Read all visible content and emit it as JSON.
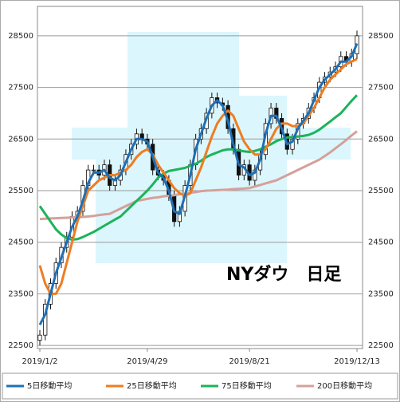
{
  "chart_data": {
    "type": "candlestick",
    "title": "NYダウ　日足",
    "categories": [
      "2019/1/2",
      null,
      null,
      null,
      null,
      null,
      null,
      null,
      null,
      null,
      null,
      null,
      null,
      null,
      null,
      null,
      null,
      null,
      null,
      null,
      "2019/4/29",
      null,
      null,
      null,
      null,
      null,
      null,
      null,
      null,
      null,
      null,
      null,
      null,
      null,
      null,
      null,
      null,
      null,
      null,
      "2019/8/21",
      null,
      null,
      null,
      null,
      null,
      null,
      null,
      null,
      null,
      null,
      null,
      null,
      null,
      null,
      null,
      null,
      null,
      null,
      null,
      "2019/12/13"
    ],
    "open": [
      22600,
      22700,
      23300,
      23700,
      24100,
      24400,
      24600,
      25000,
      25100,
      25600,
      25900,
      25900,
      25800,
      26000,
      25600,
      25700,
      25900,
      26200,
      26400,
      26600,
      26500,
      26400,
      25900,
      25800,
      25700,
      25400,
      24900,
      25100,
      25600,
      26000,
      26500,
      26700,
      27000,
      27300,
      27200,
      27150,
      26700,
      26300,
      25800,
      26000,
      25700,
      25900,
      26200,
      26800,
      27100,
      26900,
      26600,
      26300,
      26500,
      26800,
      26900,
      27100,
      27300,
      27600,
      27700,
      27800,
      27900,
      28100,
      28000,
      28150
    ],
    "high": [
      22800,
      23400,
      23800,
      24200,
      24500,
      24700,
      25100,
      25200,
      25700,
      26000,
      26000,
      26000,
      26100,
      26100,
      25800,
      26000,
      26300,
      26500,
      26700,
      26700,
      26600,
      26500,
      26000,
      25900,
      25800,
      25500,
      25200,
      25700,
      26100,
      26600,
      26800,
      27100,
      27400,
      27400,
      27300,
      27250,
      26800,
      26400,
      26100,
      26100,
      26000,
      26300,
      26900,
      27200,
      27200,
      27000,
      26700,
      26600,
      26900,
      27000,
      27200,
      27400,
      27700,
      27800,
      27900,
      28000,
      28200,
      28200,
      28250,
      28600
    ],
    "low": [
      22500,
      22600,
      23200,
      23600,
      24000,
      24300,
      24500,
      24900,
      25000,
      25500,
      25800,
      25700,
      25700,
      25500,
      25500,
      25600,
      25800,
      26100,
      26300,
      26400,
      26300,
      25800,
      25700,
      25600,
      25300,
      24800,
      24800,
      25000,
      25500,
      25900,
      26400,
      26600,
      26900,
      27100,
      27050,
      26600,
      26200,
      25700,
      25700,
      25600,
      25600,
      25800,
      26100,
      26700,
      26800,
      26500,
      26200,
      26200,
      26400,
      26700,
      26800,
      27000,
      27200,
      27500,
      27600,
      27700,
      27800,
      27900,
      27900,
      28050
    ],
    "close": [
      22700,
      23300,
      23700,
      24100,
      24400,
      24600,
      25000,
      25100,
      25600,
      25900,
      25900,
      25800,
      26000,
      25600,
      25700,
      25900,
      26200,
      26400,
      26600,
      26500,
      26400,
      25900,
      25800,
      25700,
      25400,
      24900,
      25100,
      25600,
      26000,
      26500,
      26700,
      27000,
      27300,
      27200,
      27150,
      26700,
      26300,
      25800,
      26000,
      25700,
      25900,
      26200,
      26800,
      27100,
      26900,
      26600,
      26300,
      26500,
      26800,
      26900,
      27100,
      27300,
      27600,
      27700,
      27800,
      27900,
      28100,
      28000,
      28150,
      28500
    ],
    "series": [
      {
        "name": "5日移動平均",
        "color": "#1f6fb5",
        "values": [
          22900,
          23100,
          23500,
          23900,
          24200,
          24500,
          24800,
          25000,
          25300,
          25650,
          25850,
          25850,
          25900,
          25750,
          25700,
          25800,
          26050,
          26300,
          26500,
          26500,
          26450,
          26150,
          25850,
          25750,
          25500,
          25100,
          25050,
          25400,
          25800,
          26300,
          26600,
          26900,
          27150,
          27250,
          27150,
          26850,
          26400,
          26000,
          25950,
          25800,
          25850,
          26100,
          26600,
          26950,
          26950,
          26700,
          26400,
          26450,
          26700,
          26850,
          27000,
          27250,
          27500,
          27650,
          27750,
          27850,
          28000,
          28000,
          28100,
          28350
        ]
      },
      {
        "name": "25日移動平均",
        "color": "#ed7d22",
        "values": [
          24050,
          23700,
          23500,
          23500,
          23700,
          24100,
          24500,
          24900,
          25200,
          25500,
          25600,
          25700,
          25750,
          25800,
          25800,
          25850,
          25900,
          26000,
          26150,
          26250,
          26300,
          26200,
          26000,
          25850,
          25700,
          25550,
          25450,
          25400,
          25450,
          25700,
          25950,
          26250,
          26550,
          26800,
          26950,
          27050,
          26950,
          26700,
          26450,
          26300,
          26200,
          26200,
          26300,
          26500,
          26700,
          26800,
          26800,
          26750,
          26750,
          26800,
          26950,
          27100,
          27300,
          27500,
          27650,
          27750,
          27850,
          27950,
          28000,
          28050
        ]
      },
      {
        "name": "75日移動平均",
        "color": "#1db35a",
        "values": [
          25200,
          25050,
          24900,
          24750,
          24650,
          24580,
          24550,
          24560,
          24600,
          24650,
          24700,
          24760,
          24820,
          24880,
          24940,
          25000,
          25100,
          25200,
          25300,
          25400,
          25500,
          25620,
          25750,
          25830,
          25880,
          25900,
          25920,
          25940,
          25980,
          26020,
          26080,
          26150,
          26200,
          26240,
          26280,
          26300,
          26300,
          26280,
          26260,
          26250,
          26270,
          26300,
          26350,
          26400,
          26460,
          26500,
          26530,
          26540,
          26550,
          26560,
          26580,
          26620,
          26680,
          26760,
          26840,
          26920,
          27000,
          27120,
          27240,
          27350
        ]
      },
      {
        "name": "200日移動平均",
        "color": "#d4a19a",
        "values": [
          24950,
          24955,
          24960,
          24965,
          24970,
          24975,
          24980,
          24985,
          24990,
          25000,
          25010,
          25025,
          25040,
          25050,
          25100,
          25150,
          25200,
          25250,
          25300,
          25320,
          25340,
          25360,
          25370,
          25390,
          25400,
          25410,
          25430,
          25440,
          25460,
          25470,
          25490,
          25500,
          25505,
          25510,
          25515,
          25520,
          25530,
          25535,
          25540,
          25550,
          25580,
          25610,
          25640,
          25670,
          25700,
          25750,
          25800,
          25850,
          25900,
          25950,
          26000,
          26050,
          26100,
          26170,
          26240,
          26320,
          26400,
          26480,
          26570,
          26650
        ]
      }
    ],
    "ylim": [
      22440,
      29070
    ],
    "yticks": [
      22500,
      23500,
      24500,
      25500,
      26500,
      27500,
      28500
    ],
    "grid": true,
    "legend": "bottom"
  }
}
